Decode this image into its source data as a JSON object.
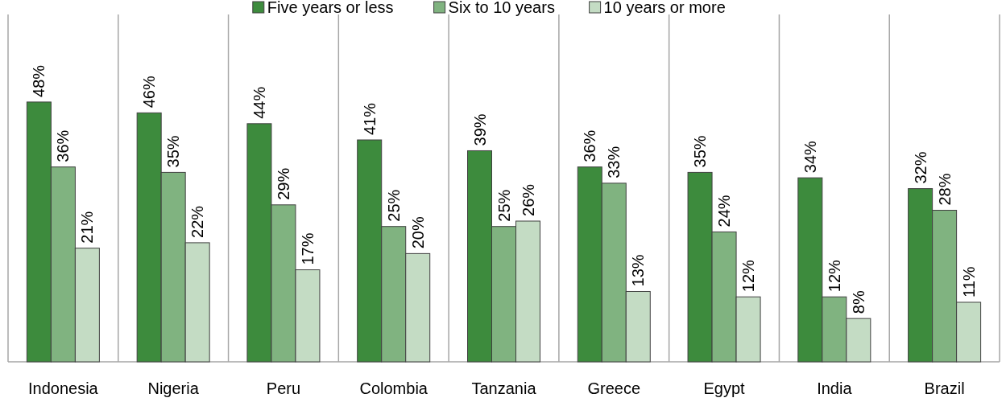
{
  "chart_data": {
    "type": "bar",
    "categories": [
      "Indonesia",
      "Nigeria",
      "Peru",
      "Colombia",
      "Tanzania",
      "Greece",
      "Egypt",
      "India",
      "Brazil"
    ],
    "series": [
      {
        "name": "Five years or less",
        "color": "#3d8b3d",
        "values": [
          48,
          46,
          44,
          41,
          39,
          36,
          35,
          34,
          32
        ],
        "value_labels": [
          "48%",
          "46%",
          "44%",
          "41%",
          "39%",
          "36%",
          "35%",
          "34%",
          "32%"
        ]
      },
      {
        "name": "Six to 10 years",
        "color": "#80b380",
        "values": [
          36,
          35,
          29,
          25,
          25,
          33,
          24,
          12,
          28
        ],
        "value_labels": [
          "36%",
          "35%",
          "29%",
          "25%",
          "25%",
          "33%",
          "24%",
          "12%",
          "28%"
        ]
      },
      {
        "name": "10 years or more",
        "color": "#c4dcc4",
        "values": [
          21,
          22,
          17,
          20,
          26,
          13,
          12,
          8,
          11
        ],
        "value_labels": [
          "21%",
          "22%",
          "17%",
          "20%",
          "26%",
          "13%",
          "12%",
          "8%",
          "11%"
        ]
      }
    ],
    "grid": "x",
    "legend": "top"
  }
}
